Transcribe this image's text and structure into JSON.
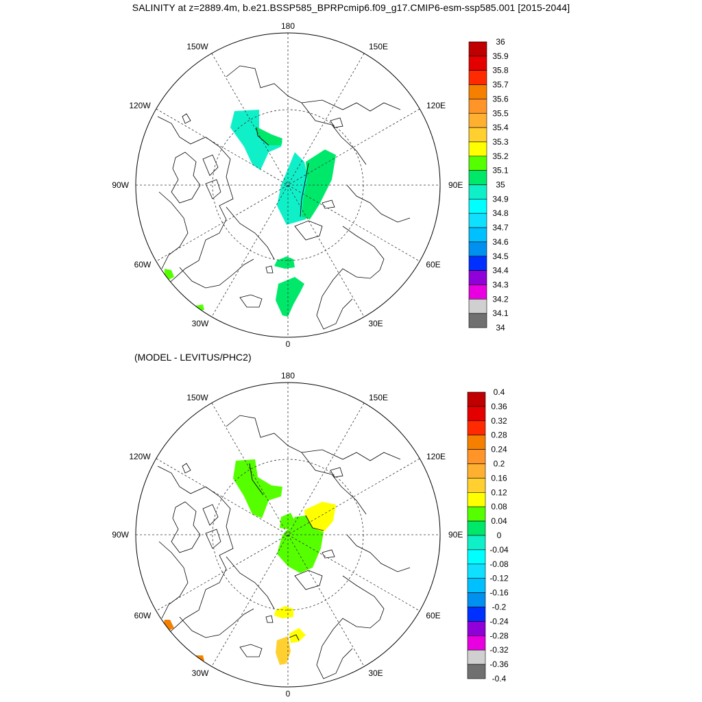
{
  "title": "SALINITY at z=2889.4m, b.e21.BSSP585_BPRPcmip6.f09_g17.CMIP6-esm-ssp585.001 [2015-2044]",
  "panels": [
    {
      "id": "top",
      "subtitle": "",
      "longitude_labels": {
        "north": "180",
        "south": "0",
        "west": "90W",
        "east": "90E",
        "nw1": "150W",
        "nw2": "120W",
        "ne1": "150E",
        "ne2": "120E",
        "sw1": "60W",
        "sw2": "30W",
        "se1": "60E",
        "se2": "30E"
      },
      "colorbar": {
        "labels": [
          "36",
          "35.9",
          "35.8",
          "35.7",
          "35.6",
          "35.5",
          "35.4",
          "35.3",
          "35.2",
          "35.1",
          "35",
          "34.9",
          "34.8",
          "34.7",
          "34.6",
          "34.5",
          "34.4",
          "34.3",
          "34.2",
          "34.1",
          "34"
        ],
        "colors": [
          "#c00000",
          "#e40000",
          "#ff2a00",
          "#f58000",
          "#ff9428",
          "#ffb030",
          "#ffd030",
          "#ffff00",
          "#55ff00",
          "#00e86a",
          "#10f0c8",
          "#00ffff",
          "#10e0ff",
          "#00c0ff",
          "#0090f0",
          "#0030ff",
          "#9000d8",
          "#e800e0",
          "#d0d0d0",
          "#707070"
        ]
      }
    },
    {
      "id": "bottom",
      "subtitle": "(MODEL - LEVITUS/PHC2)",
      "longitude_labels": {
        "north": "180",
        "south": "0",
        "west": "90W",
        "east": "90E",
        "nw1": "150W",
        "nw2": "120W",
        "ne1": "150E",
        "ne2": "120E",
        "sw1": "60W",
        "sw2": "30W",
        "se1": "60E",
        "se2": "30E"
      },
      "colorbar": {
        "labels": [
          "0.4",
          "0.36",
          "0.32",
          "0.28",
          "0.24",
          "0.2",
          "0.16",
          "0.12",
          "0.08",
          "0.04",
          "0",
          "-0.04",
          "-0.08",
          "-0.12",
          "-0.16",
          "-0.2",
          "-0.24",
          "-0.28",
          "-0.32",
          "-0.36",
          "-0.4"
        ],
        "colors": [
          "#c00000",
          "#e40000",
          "#ff2a00",
          "#f58000",
          "#ff9428",
          "#ffb030",
          "#ffd030",
          "#ffff00",
          "#55ff00",
          "#00e86a",
          "#10f0c8",
          "#00ffff",
          "#10e0ff",
          "#00c0ff",
          "#0090f0",
          "#0030ff",
          "#9000d8",
          "#e800e0",
          "#d0d0d0",
          "#707070"
        ]
      }
    }
  ]
}
